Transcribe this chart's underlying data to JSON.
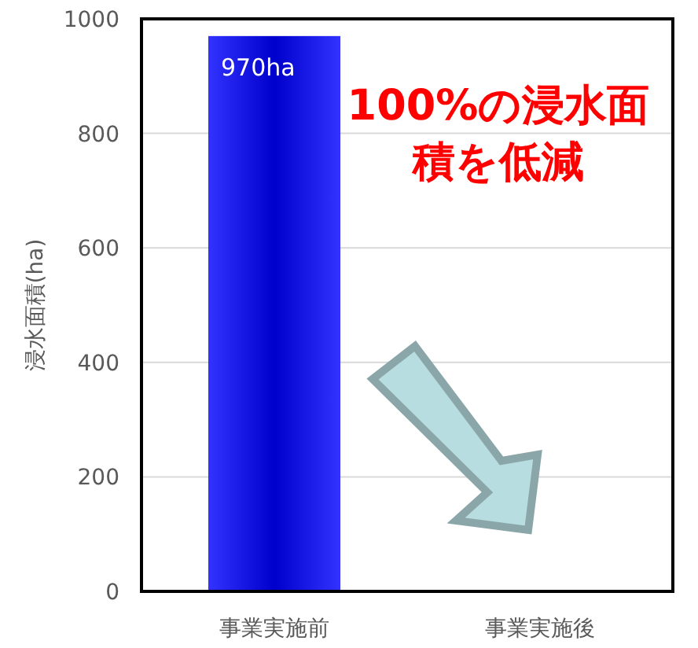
{
  "chart_data": {
    "type": "bar",
    "categories": [
      "事業実施前",
      "事業実施後"
    ],
    "values": [
      970,
      0
    ],
    "value_labels": [
      "970ha",
      null
    ],
    "color": "#0000cc",
    "ylabel": "浸水面積(ha)",
    "ylim": [
      0,
      1000
    ],
    "yticks": [
      0,
      200,
      400,
      600,
      800,
      1000
    ],
    "grid": "y",
    "annotations": [
      "100%の浸水面積を低減"
    ]
  }
}
